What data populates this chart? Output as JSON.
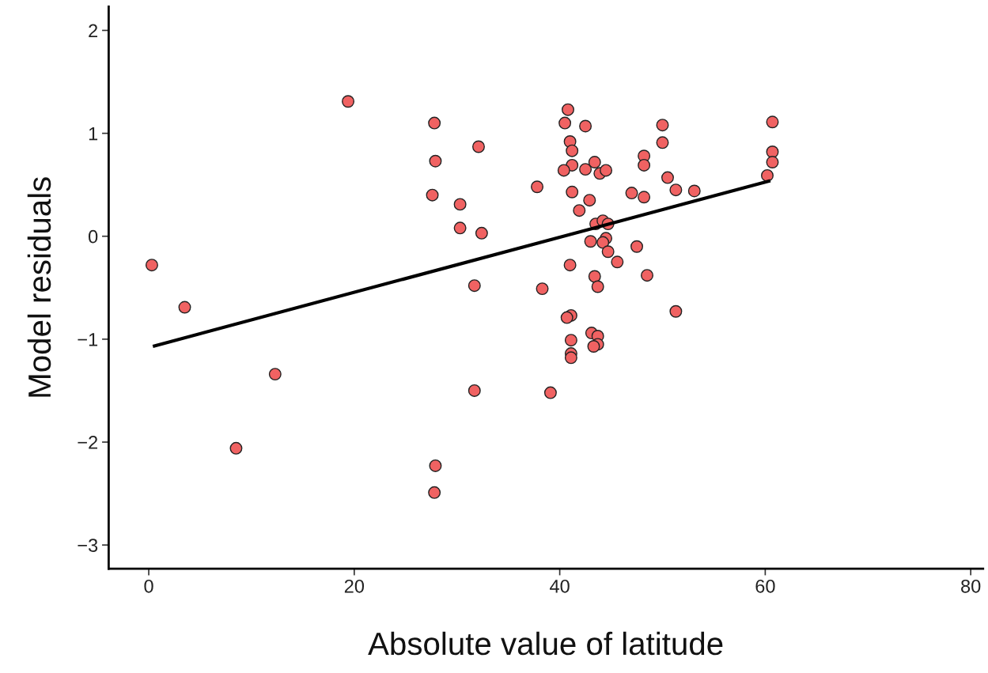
{
  "chart_data": {
    "type": "scatter",
    "xlabel": "Absolute value of latitude",
    "ylabel": "Model residuals",
    "xlim": [
      -3.9,
      81.2
    ],
    "ylim": [
      -3.23,
      2.23
    ],
    "xticks": [
      0,
      20,
      40,
      60,
      80
    ],
    "yticks": [
      {
        "value": -3,
        "label": "−3"
      },
      {
        "value": -2,
        "label": "−2"
      },
      {
        "value": -1,
        "label": "−1"
      },
      0,
      1,
      2
    ],
    "grid": false,
    "legend": false,
    "marker": "circle",
    "series": [
      {
        "color": "#f06262",
        "x": [
          0.3,
          3.5,
          8.5,
          12.3,
          19.4,
          27.8,
          27.9,
          27.6,
          27.9,
          27.8,
          30.3,
          30.3,
          32.1,
          32.4,
          31.7,
          31.7,
          40.8,
          40.5,
          42.5,
          41.0,
          41.2,
          43.4,
          41.2,
          40.4,
          42.5,
          43.9,
          44.5,
          50.0,
          50.0,
          48.2,
          48.2,
          41.2,
          42.9,
          41.9,
          47.0,
          48.2,
          50.5,
          51.3,
          53.1,
          43.5,
          44.2,
          44.7,
          44.5,
          43.0,
          44.2,
          44.7,
          47.5,
          45.6,
          41.0,
          48.5,
          43.4,
          43.7,
          38.3,
          37.8,
          51.3,
          41.1,
          40.7,
          43.1,
          43.7,
          43.7,
          43.3,
          41.1,
          41.1,
          41.1,
          39.1,
          60.7,
          60.7,
          60.7,
          60.2
        ],
        "values": [
          -0.28,
          -0.69,
          -2.06,
          -1.34,
          1.31,
          1.1,
          0.73,
          0.4,
          -2.23,
          -2.49,
          0.31,
          0.08,
          0.87,
          0.03,
          -0.48,
          -1.5,
          1.23,
          1.1,
          1.07,
          0.92,
          0.83,
          0.72,
          0.69,
          0.64,
          0.65,
          0.61,
          0.64,
          1.08,
          0.91,
          0.78,
          0.69,
          0.43,
          0.35,
          0.25,
          0.42,
          0.38,
          0.57,
          0.45,
          0.44,
          0.12,
          0.15,
          0.12,
          -0.02,
          -0.05,
          -0.06,
          -0.15,
          -0.1,
          -0.25,
          -0.28,
          -0.38,
          -0.39,
          -0.49,
          -0.51,
          0.48,
          -0.73,
          -0.77,
          -0.79,
          -0.94,
          -0.97,
          -1.05,
          -1.07,
          -1.01,
          -1.14,
          -1.18,
          -1.52,
          1.11,
          0.82,
          0.72,
          0.59
        ]
      },
      {
        "type": "line",
        "color": "#000000",
        "marker": "none",
        "line_style": "solid",
        "x": [
          0.4,
          60.5
        ],
        "values": [
          -1.07,
          0.54
        ]
      }
    ]
  }
}
